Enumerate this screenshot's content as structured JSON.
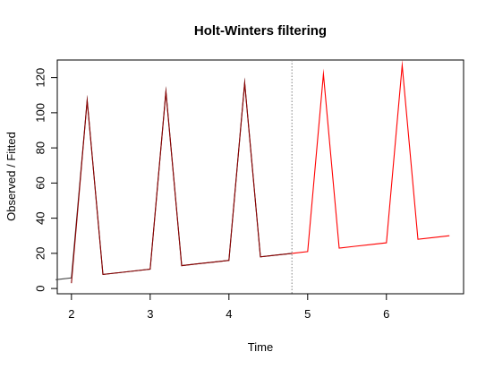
{
  "chart_data": {
    "type": "line",
    "title": "Holt-Winters filtering",
    "xlabel": "Time",
    "ylabel": "Observed / Fitted",
    "xlim": [
      1.82,
      6.98
    ],
    "ylim": [
      -3,
      130
    ],
    "x_ticks": [
      2,
      3,
      4,
      5,
      6
    ],
    "y_ticks": [
      0,
      20,
      40,
      60,
      80,
      100,
      120
    ],
    "forecast_start": 4.8,
    "colors": {
      "observed": "#404040",
      "fitted": "#8b0000",
      "predicted": "#ff0000",
      "divider": "#808080"
    },
    "series": [
      {
        "role": "observed",
        "x": [
          1.8,
          2.0,
          2.2,
          2.4,
          2.6,
          2.8,
          3.0,
          3.2,
          3.4,
          3.6,
          3.8,
          4.0,
          4.2,
          4.4,
          4.6,
          4.8
        ],
        "y": [
          5,
          6,
          107,
          8,
          9,
          10,
          11,
          112,
          13,
          14,
          15,
          16,
          117,
          18,
          19,
          20
        ]
      },
      {
        "role": "fitted",
        "x": [
          2.0,
          2.2,
          2.4,
          2.6,
          2.8,
          3.0,
          3.2,
          3.4,
          3.6,
          3.8,
          4.0,
          4.2,
          4.4,
          4.6,
          4.8
        ],
        "y": [
          3,
          107,
          8,
          9,
          10,
          11,
          112,
          13,
          14,
          15,
          16,
          117,
          18,
          19,
          20
        ]
      },
      {
        "role": "predicted",
        "x": [
          4.8,
          5.0,
          5.2,
          5.4,
          5.6,
          5.8,
          6.0,
          6.2,
          6.4,
          6.6,
          6.8
        ],
        "y": [
          20,
          21,
          122,
          23,
          24,
          25,
          26,
          127,
          28,
          29,
          30
        ]
      }
    ]
  }
}
